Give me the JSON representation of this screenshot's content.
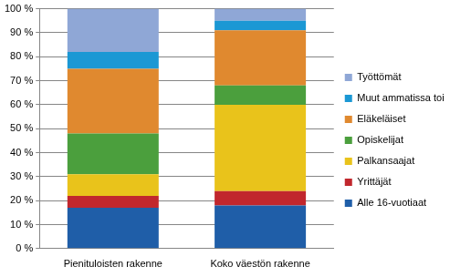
{
  "chart_data": {
    "type": "bar",
    "stacked": true,
    "categories": [
      "Pienituloisten rakenne",
      "Koko väestön rakenne"
    ],
    "series": [
      {
        "name": "Alle 16-vuotiaat",
        "color": "#1f5ea8",
        "values": [
          17,
          18
        ]
      },
      {
        "name": "Yrittäjät",
        "color": "#c1272d",
        "values": [
          5,
          6
        ]
      },
      {
        "name": "Palkansaajat",
        "color": "#e9c31b",
        "values": [
          9,
          36
        ]
      },
      {
        "name": "Opiskelijat",
        "color": "#4b9f3d",
        "values": [
          17,
          8
        ]
      },
      {
        "name": "Eläkeläiset",
        "color": "#e0892f",
        "values": [
          27,
          23
        ]
      },
      {
        "name": "Muut ammatissa toimimattomat",
        "color": "#1b98d4",
        "values": [
          7,
          4
        ]
      },
      {
        "name": "Työttömät",
        "color": "#8fa7d6",
        "values": [
          18,
          5
        ]
      }
    ],
    "ylim": [
      0,
      100
    ],
    "yticks": [
      {
        "value": 0,
        "label": "0 %"
      },
      {
        "value": 10,
        "label": "10 %"
      },
      {
        "value": 20,
        "label": "20 %"
      },
      {
        "value": 30,
        "label": "30 %"
      },
      {
        "value": 40,
        "label": "40 %"
      },
      {
        "value": 50,
        "label": "50 %"
      },
      {
        "value": 60,
        "label": "60 %"
      },
      {
        "value": 70,
        "label": "70 %"
      },
      {
        "value": 80,
        "label": "80 %"
      },
      {
        "value": 90,
        "label": "90 %"
      },
      {
        "value": 100,
        "label": "100 %"
      }
    ],
    "grid": true,
    "legend": "right"
  }
}
